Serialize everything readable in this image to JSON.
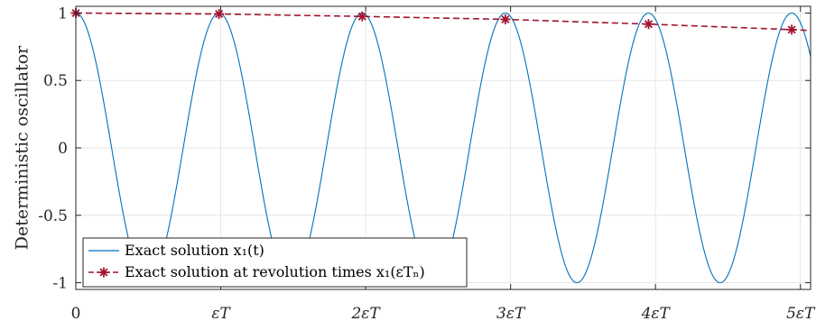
{
  "chart_data": {
    "type": "line",
    "title": "",
    "xlabel": "",
    "ylabel": "Deterministic oscillator",
    "xlim": [
      0,
      5.07
    ],
    "ylim": [
      -1.05,
      1.05
    ],
    "x_ticks": [
      0,
      1,
      2,
      3,
      4,
      5
    ],
    "x_tick_labels": [
      "0",
      "εT",
      "2εT",
      "3εT",
      "4εT",
      "5εT"
    ],
    "y_ticks": [
      1,
      0.5,
      0,
      -0.5,
      -1
    ],
    "y_tick_labels": [
      "1",
      "0.5",
      "0",
      "-0.5",
      "-1"
    ],
    "grid": true,
    "legend_position": "bottom-left",
    "series": [
      {
        "name": "Exact solution x₁(t)",
        "style": "solid",
        "color": "#0072BD",
        "generator": {
          "amplitude": 1.0,
          "period": 0.988,
          "phase": 0.0,
          "x_start": 0,
          "x_end": 5.07,
          "samples": 1200
        }
      },
      {
        "name": "Exact solution at revolution times x₁(εTₙ)",
        "style": "dashed",
        "marker": "asterisk",
        "color": "#A2142F",
        "x": [
          0,
          0.988,
          1.976,
          2.964,
          3.952,
          4.94
        ],
        "y": [
          1.0,
          0.993,
          0.975,
          0.953,
          0.918,
          0.877
        ],
        "extend_to_x": 5.07,
        "extend_to_y": 0.87
      }
    ]
  }
}
